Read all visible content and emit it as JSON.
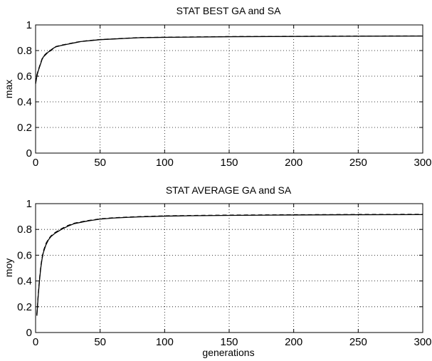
{
  "chart_data": [
    {
      "type": "line",
      "title": "STAT BEST GA and SA",
      "xlabel": "",
      "ylabel": "max",
      "xlim": [
        0,
        300
      ],
      "ylim": [
        0,
        1
      ],
      "xticks": [
        "0",
        "50",
        "100",
        "150",
        "200",
        "250",
        "300"
      ],
      "yticks": [
        "0",
        "0.2",
        "0.4",
        "0.6",
        "0.8",
        "1"
      ],
      "grid": true,
      "series": [
        {
          "style": "solid",
          "color": "#000000",
          "x": [
            0,
            1,
            2,
            3,
            4,
            5,
            6,
            8,
            10,
            12,
            14,
            16,
            18,
            20,
            25,
            30,
            35,
            40,
            50,
            60,
            70,
            80,
            100,
            120,
            150,
            200,
            250,
            300
          ],
          "y": [
            0.54,
            0.6,
            0.64,
            0.67,
            0.7,
            0.73,
            0.75,
            0.77,
            0.79,
            0.8,
            0.82,
            0.83,
            0.835,
            0.84,
            0.85,
            0.86,
            0.87,
            0.875,
            0.885,
            0.89,
            0.895,
            0.9,
            0.903,
            0.905,
            0.908,
            0.91,
            0.912,
            0.913
          ]
        },
        {
          "style": "dashed",
          "color": "#000000",
          "x": [
            0,
            1,
            2,
            3,
            4,
            5,
            6,
            8,
            10,
            12,
            14,
            16,
            18,
            20,
            25,
            30,
            35,
            40,
            50,
            60,
            70,
            80,
            100,
            120,
            150,
            200,
            250,
            300
          ],
          "y": [
            0.55,
            0.61,
            0.645,
            0.675,
            0.705,
            0.735,
            0.755,
            0.775,
            0.795,
            0.805,
            0.822,
            0.832,
            0.837,
            0.842,
            0.852,
            0.862,
            0.871,
            0.877,
            0.886,
            0.891,
            0.896,
            0.901,
            0.904,
            0.906,
            0.909,
            0.911,
            0.913,
            0.914
          ]
        }
      ]
    },
    {
      "type": "line",
      "title": "STAT AVERAGE GA and SA",
      "xlabel": "generations",
      "ylabel": "moy",
      "xlim": [
        0,
        300
      ],
      "ylim": [
        0,
        1
      ],
      "xticks": [
        "0",
        "50",
        "100",
        "150",
        "200",
        "250",
        "300"
      ],
      "yticks": [
        "0",
        "0.2",
        "0.4",
        "0.6",
        "0.8",
        "1"
      ],
      "grid": true,
      "series": [
        {
          "style": "solid",
          "color": "#000000",
          "x": [
            1,
            2,
            3,
            4,
            5,
            6,
            8,
            10,
            12,
            15,
            20,
            25,
            30,
            40,
            50,
            60,
            70,
            80,
            100,
            120,
            150,
            200,
            250,
            300
          ],
          "y": [
            0.13,
            0.28,
            0.4,
            0.5,
            0.57,
            0.62,
            0.68,
            0.72,
            0.745,
            0.77,
            0.8,
            0.825,
            0.845,
            0.865,
            0.88,
            0.888,
            0.893,
            0.897,
            0.903,
            0.906,
            0.909,
            0.912,
            0.914,
            0.915
          ]
        },
        {
          "style": "dashed",
          "color": "#000000",
          "x": [
            1,
            2,
            3,
            4,
            5,
            6,
            8,
            10,
            12,
            15,
            20,
            25,
            30,
            40,
            50,
            60,
            70,
            80,
            100,
            120,
            150,
            200,
            250,
            300
          ],
          "y": [
            0.14,
            0.29,
            0.41,
            0.51,
            0.58,
            0.63,
            0.69,
            0.725,
            0.75,
            0.775,
            0.805,
            0.83,
            0.848,
            0.868,
            0.882,
            0.89,
            0.895,
            0.899,
            0.905,
            0.908,
            0.911,
            0.914,
            0.916,
            0.917
          ]
        }
      ]
    }
  ]
}
